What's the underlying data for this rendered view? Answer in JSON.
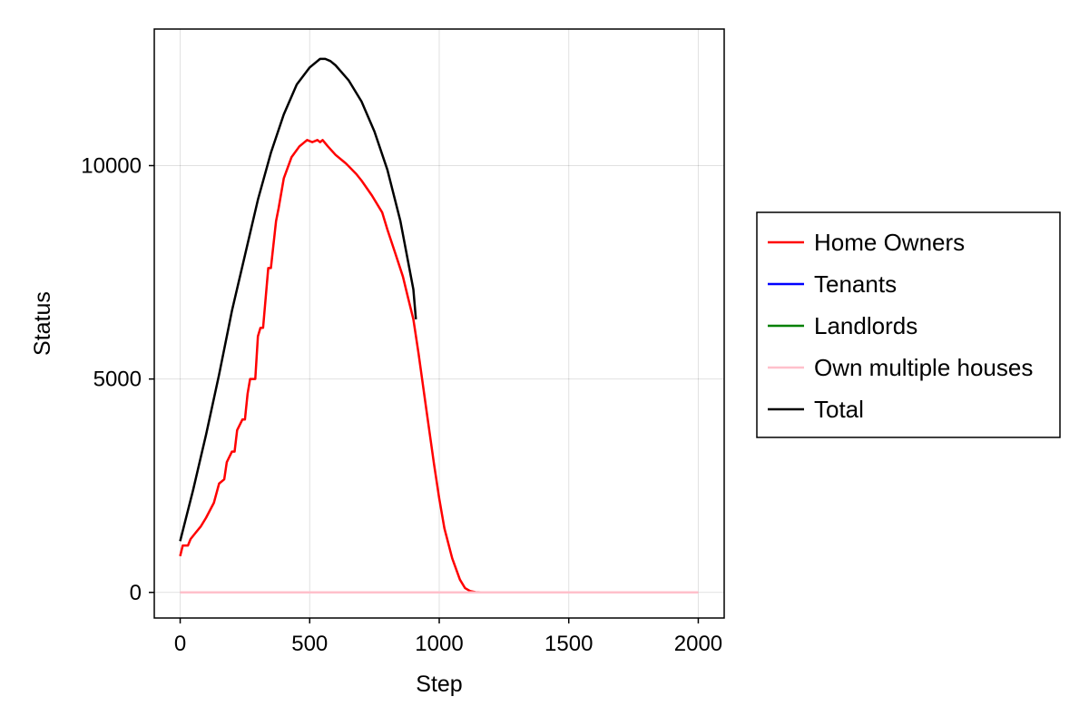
{
  "chart_data": {
    "type": "line",
    "title": "",
    "xlabel": "Step",
    "ylabel": "Status",
    "xlim": [
      -100,
      2100
    ],
    "ylim": [
      -600,
      13200
    ],
    "xticks": [
      0,
      500,
      1000,
      1500,
      2000
    ],
    "xtick_labels": [
      "0",
      "500",
      "1000",
      "1500",
      "2000"
    ],
    "yticks": [
      0,
      5000,
      10000
    ],
    "ytick_labels": [
      "0",
      "5000",
      "10000"
    ],
    "grid": true,
    "legend_position": "right",
    "series": [
      {
        "name": "Home Owners",
        "color": "#ff0000",
        "x": [
          0,
          10,
          30,
          40,
          60,
          80,
          100,
          130,
          150,
          170,
          180,
          200,
          210,
          220,
          240,
          250,
          260,
          270,
          290,
          300,
          310,
          320,
          340,
          350,
          370,
          380,
          400,
          430,
          460,
          490,
          510,
          530,
          540,
          550,
          570,
          600,
          640,
          680,
          700,
          740,
          780,
          800,
          830,
          860,
          880,
          900,
          920,
          950,
          980,
          1000,
          1020,
          1050,
          1080,
          1100,
          1120,
          1140,
          1160,
          1200,
          1500,
          2000
        ],
        "values": [
          850,
          1100,
          1100,
          1250,
          1400,
          1550,
          1750,
          2100,
          2550,
          2650,
          3050,
          3300,
          3300,
          3800,
          4050,
          4050,
          4650,
          5000,
          5000,
          6000,
          6200,
          6200,
          7600,
          7600,
          8700,
          9000,
          9700,
          10200,
          10450,
          10600,
          10550,
          10600,
          10550,
          10600,
          10450,
          10250,
          10050,
          9800,
          9650,
          9300,
          8900,
          8500,
          7950,
          7400,
          6900,
          6400,
          5600,
          4300,
          3000,
          2200,
          1500,
          800,
          300,
          100,
          30,
          5,
          0,
          0,
          0,
          0
        ]
      },
      {
        "name": "Tenants",
        "color": "#0000ff",
        "x": [
          0,
          2000
        ],
        "values": [
          0,
          0
        ]
      },
      {
        "name": "Landlords",
        "color": "#008000",
        "x": [
          0,
          2000
        ],
        "values": [
          0,
          0
        ]
      },
      {
        "name": "Own multiple houses",
        "color": "#ffc0cb",
        "x": [
          0,
          2000
        ],
        "values": [
          0,
          0
        ]
      },
      {
        "name": "Total",
        "color": "#000000",
        "x": [
          0,
          50,
          100,
          150,
          200,
          250,
          300,
          350,
          400,
          450,
          500,
          540,
          560,
          580,
          600,
          650,
          700,
          750,
          800,
          850,
          900,
          910
        ],
        "values": [
          1200,
          2400,
          3700,
          5100,
          6600,
          7900,
          9200,
          10300,
          11200,
          11900,
          12300,
          12500,
          12500,
          12450,
          12350,
          12000,
          11500,
          10800,
          9900,
          8700,
          7100,
          6400
        ]
      }
    ]
  }
}
